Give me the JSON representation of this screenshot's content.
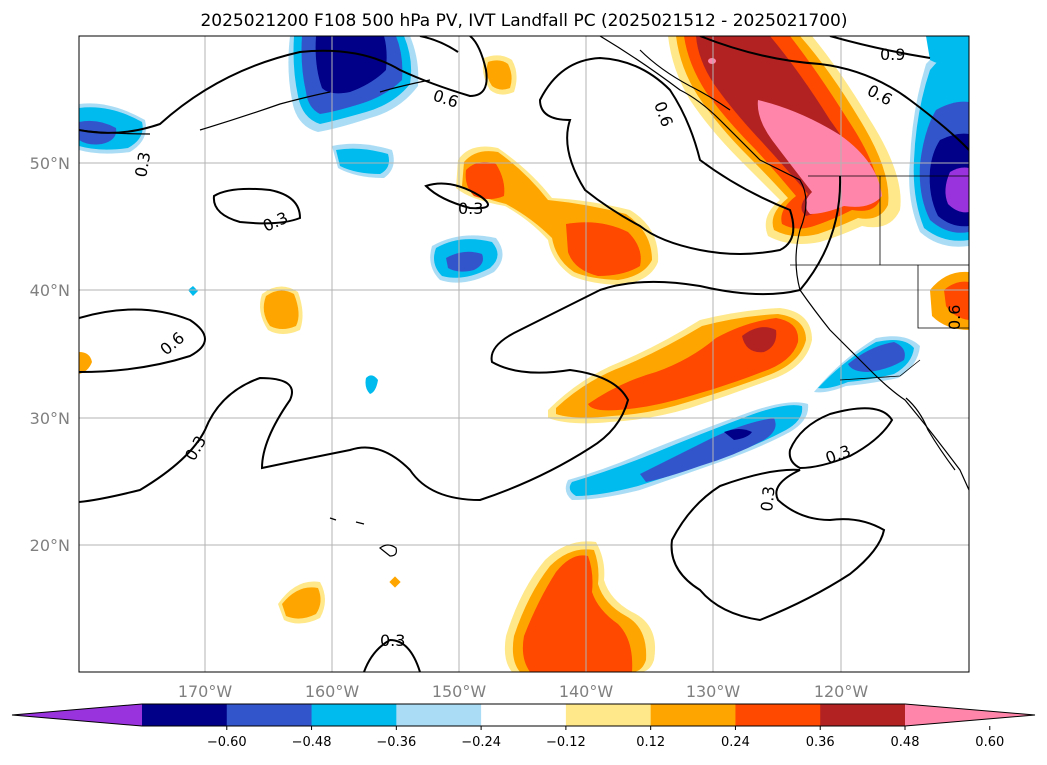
{
  "title": "2025021200 F108 500 hPa PV, IVT Landfall PC (2025021512 - 2025021700)",
  "map": {
    "lat_labels": [
      "50°N",
      "40°N",
      "30°N",
      "20°N"
    ],
    "lon_labels": [
      "170°W",
      "160°W",
      "150°W",
      "140°W",
      "130°W",
      "120°W"
    ],
    "contour_labels": [
      "0.9",
      "0.6",
      "0.6",
      "0.6",
      "0.6",
      "0.3",
      "0.3",
      "0.3",
      "0.6",
      "0.3",
      "0.3",
      "0.3",
      "0.3",
      "0.3"
    ],
    "grid": true
  },
  "colorbar": {
    "tick_labels": [
      "−0.60",
      "−0.48",
      "−0.36",
      "−0.24",
      "−0.12",
      "0.12",
      "0.24",
      "0.36",
      "0.48",
      "0.60"
    ],
    "colors": [
      "#9933dd",
      "#000088",
      "#3355cc",
      "#00bbee",
      "#aaddf5",
      "#ffffff",
      "#ffe88a",
      "#ffa500",
      "#ff4800",
      "#b22222",
      "#ff85aa"
    ],
    "extend": "both"
  },
  "colors": {
    "positive_light": "#ffe88a",
    "positive_mid": "#ffa500",
    "positive_strong": "#ff4800",
    "positive_darker": "#b22222",
    "positive_max": "#ff85aa",
    "negative_light": "#aaddf5",
    "negative_mid": "#00bbee",
    "negative_strong": "#3355cc",
    "negative_darker": "#000088",
    "negative_max": "#9933dd"
  }
}
